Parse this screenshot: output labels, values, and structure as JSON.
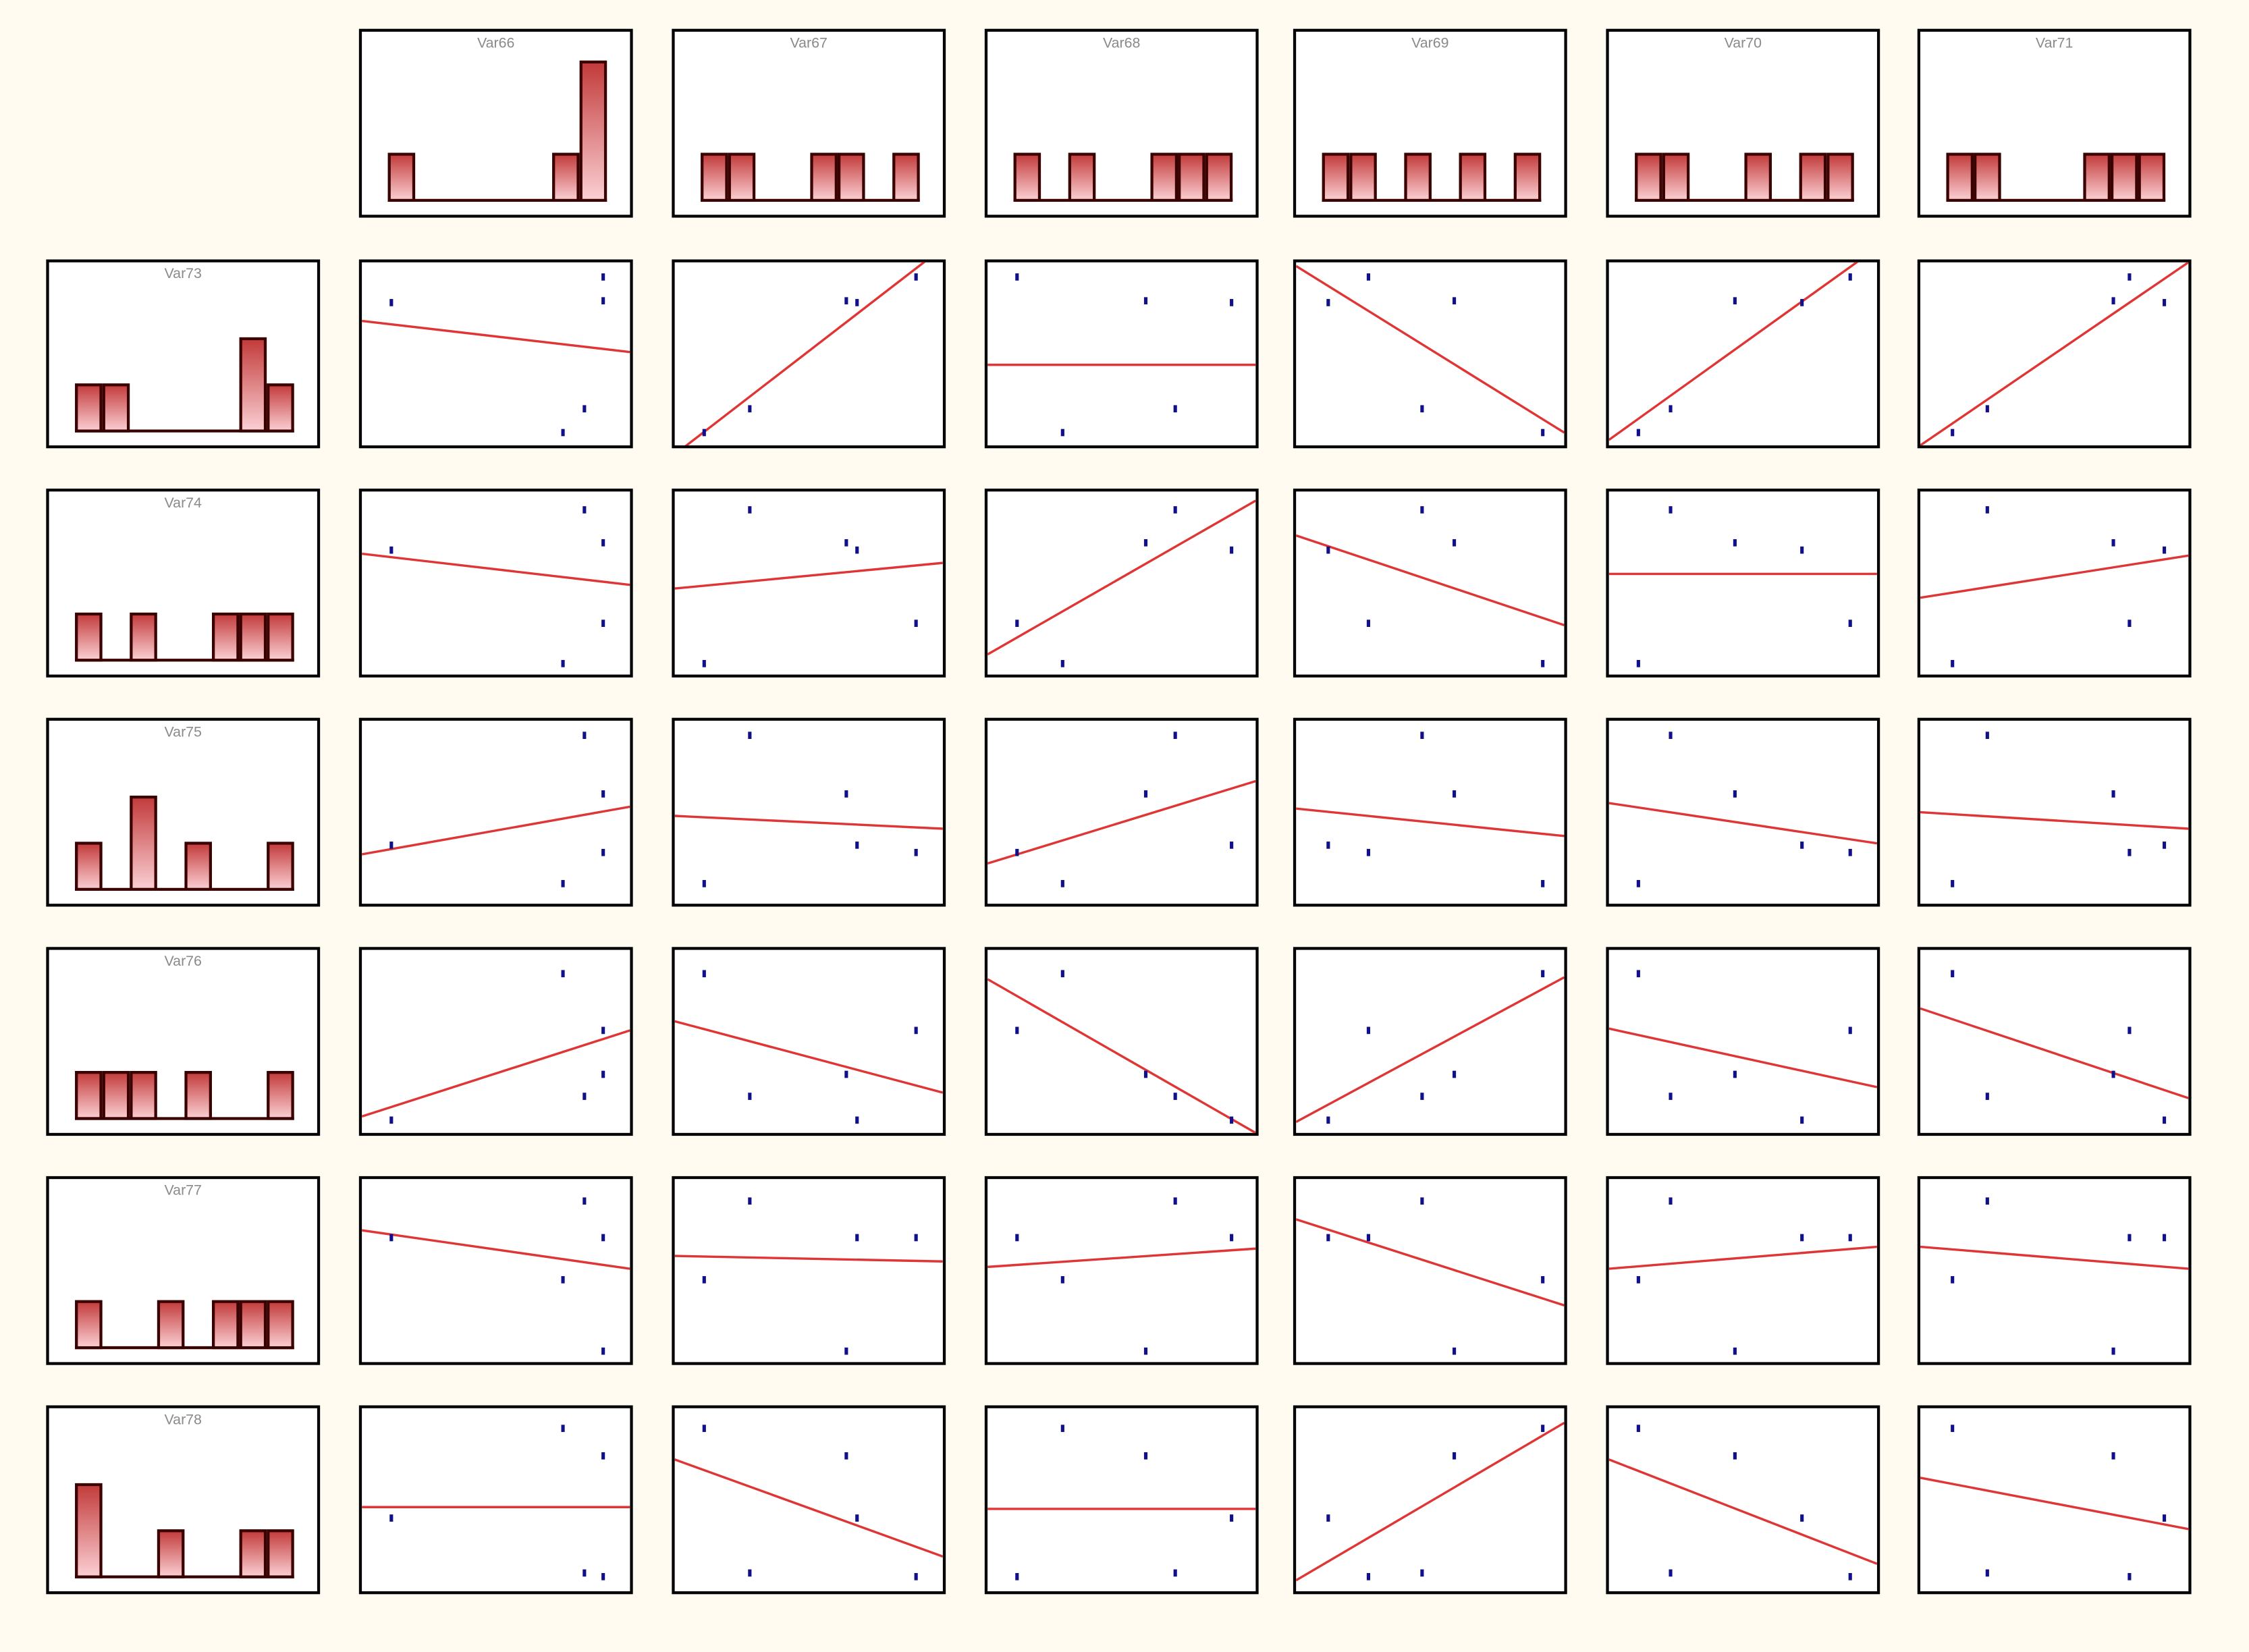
{
  "chart_data": {
    "type": "scatter-matrix",
    "columns": [
      "Var66",
      "Var67",
      "Var68",
      "Var69",
      "Var70",
      "Var71"
    ],
    "rows": [
      "Var73",
      "Var74",
      "Var75",
      "Var76",
      "Var77",
      "Var78"
    ],
    "axis_range": [
      0,
      100
    ],
    "grid": false,
    "colors": {
      "point": "#10108a",
      "fit_line": "#e03535",
      "bar_edge": "#3a0000",
      "bar_fill_top": "#c23a3a",
      "bar_fill_bottom": "#fbd0d4",
      "background": "#fffbf1"
    },
    "histograms": {
      "Var66": [
        1,
        0,
        0,
        0,
        0,
        0,
        1,
        3
      ],
      "Var67": [
        1,
        1,
        0,
        0,
        1,
        1,
        0,
        1
      ],
      "Var68": [
        1,
        0,
        1,
        0,
        0,
        1,
        1,
        1
      ],
      "Var69": [
        1,
        1,
        0,
        1,
        0,
        1,
        0,
        1
      ],
      "Var70": [
        1,
        1,
        0,
        0,
        1,
        0,
        1,
        1
      ],
      "Var71": [
        1,
        1,
        0,
        0,
        0,
        1,
        1,
        1
      ],
      "Var73": [
        1,
        1,
        0,
        0,
        0,
        0,
        2,
        1
      ],
      "Var74": [
        1,
        0,
        1,
        0,
        0,
        1,
        1,
        1
      ],
      "Var75": [
        1,
        0,
        2,
        0,
        1,
        0,
        0,
        1
      ],
      "Var76": [
        1,
        1,
        1,
        0,
        1,
        0,
        0,
        1
      ],
      "Var77": [
        1,
        0,
        0,
        1,
        0,
        1,
        1,
        1
      ],
      "Var78": [
        2,
        0,
        0,
        1,
        0,
        0,
        1,
        1
      ]
    },
    "scatter": [
      [
        {
          "points": [
            [
              11,
              78
            ],
            [
              90,
              92
            ],
            [
              90,
              79
            ],
            [
              83,
              20
            ],
            [
              75,
              7
            ]
          ],
          "fit": [
            68,
            51
          ]
        },
        {
          "points": [
            [
              11,
              7
            ],
            [
              28,
              20
            ],
            [
              64,
              79
            ],
            [
              68,
              78
            ],
            [
              90,
              92
            ]
          ],
          "fit": [
            -5,
            108
          ]
        },
        {
          "points": [
            [
              11,
              92
            ],
            [
              28,
              7
            ],
            [
              59,
              79
            ],
            [
              70,
              20
            ],
            [
              91,
              78
            ]
          ],
          "fit": [
            44,
            44
          ]
        },
        {
          "points": [
            [
              12,
              78
            ],
            [
              27,
              92
            ],
            [
              59,
              79
            ],
            [
              47,
              20
            ],
            [
              92,
              7
            ]
          ],
          "fit": [
            98,
            7
          ]
        },
        {
          "points": [
            [
              11,
              7
            ],
            [
              23,
              20
            ],
            [
              47,
              79
            ],
            [
              72,
              78
            ],
            [
              90,
              92
            ]
          ],
          "fit": [
            3,
            108
          ]
        },
        {
          "points": [
            [
              12,
              7
            ],
            [
              25,
              20
            ],
            [
              72,
              79
            ],
            [
              78,
              92
            ],
            [
              91,
              78
            ]
          ],
          "fit": [
            0,
            100
          ]
        }
      ],
      [
        {
          "points": [
            [
              11,
              68
            ],
            [
              83,
              90
            ],
            [
              90,
              72
            ],
            [
              90,
              28
            ],
            [
              75,
              6
            ]
          ],
          "fit": [
            66,
            49
          ]
        },
        {
          "points": [
            [
              11,
              6
            ],
            [
              28,
              90
            ],
            [
              64,
              72
            ],
            [
              68,
              68
            ],
            [
              90,
              28
            ]
          ],
          "fit": [
            47,
            61
          ]
        },
        {
          "points": [
            [
              11,
              28
            ],
            [
              28,
              6
            ],
            [
              59,
              72
            ],
            [
              70,
              90
            ],
            [
              91,
              68
            ]
          ],
          "fit": [
            11,
            95
          ]
        },
        {
          "points": [
            [
              12,
              68
            ],
            [
              27,
              28
            ],
            [
              59,
              72
            ],
            [
              47,
              90
            ],
            [
              92,
              6
            ]
          ],
          "fit": [
            76,
            27
          ]
        },
        {
          "points": [
            [
              11,
              6
            ],
            [
              23,
              90
            ],
            [
              47,
              72
            ],
            [
              72,
              68
            ],
            [
              90,
              28
            ]
          ],
          "fit": [
            55,
            55
          ]
        },
        {
          "points": [
            [
              12,
              6
            ],
            [
              25,
              90
            ],
            [
              72,
              72
            ],
            [
              78,
              28
            ],
            [
              91,
              68
            ]
          ],
          "fit": [
            42,
            65
          ]
        }
      ],
      [
        {
          "points": [
            [
              11,
              32
            ],
            [
              83,
              92
            ],
            [
              90,
              60
            ],
            [
              90,
              28
            ],
            [
              75,
              11
            ]
          ],
          "fit": [
            27,
            53
          ]
        },
        {
          "points": [
            [
              11,
              11
            ],
            [
              28,
              92
            ],
            [
              64,
              60
            ],
            [
              68,
              32
            ],
            [
              90,
              28
            ]
          ],
          "fit": [
            48,
            41
          ]
        },
        {
          "points": [
            [
              11,
              28
            ],
            [
              28,
              11
            ],
            [
              59,
              60
            ],
            [
              70,
              92
            ],
            [
              91,
              32
            ]
          ],
          "fit": [
            22,
            67
          ]
        },
        {
          "points": [
            [
              12,
              32
            ],
            [
              27,
              28
            ],
            [
              59,
              60
            ],
            [
              47,
              92
            ],
            [
              92,
              11
            ]
          ],
          "fit": [
            52,
            37
          ]
        },
        {
          "points": [
            [
              11,
              11
            ],
            [
              23,
              92
            ],
            [
              47,
              60
            ],
            [
              72,
              32
            ],
            [
              90,
              28
            ]
          ],
          "fit": [
            55,
            33
          ]
        },
        {
          "points": [
            [
              12,
              11
            ],
            [
              25,
              92
            ],
            [
              72,
              60
            ],
            [
              78,
              28
            ],
            [
              91,
              32
            ]
          ],
          "fit": [
            50,
            41
          ]
        }
      ],
      [
        {
          "points": [
            [
              11,
              7
            ],
            [
              75,
              87
            ],
            [
              90,
              56
            ],
            [
              90,
              32
            ],
            [
              83,
              20
            ]
          ],
          "fit": [
            9,
            56
          ]
        },
        {
          "points": [
            [
              11,
              87
            ],
            [
              28,
              20
            ],
            [
              64,
              32
            ],
            [
              68,
              7
            ],
            [
              90,
              56
            ]
          ],
          "fit": [
            61,
            22
          ]
        },
        {
          "points": [
            [
              11,
              56
            ],
            [
              28,
              87
            ],
            [
              59,
              32
            ],
            [
              70,
              20
            ],
            [
              91,
              7
            ]
          ],
          "fit": [
            84,
            0
          ]
        },
        {
          "points": [
            [
              12,
              7
            ],
            [
              27,
              56
            ],
            [
              59,
              32
            ],
            [
              47,
              20
            ],
            [
              92,
              87
            ]
          ],
          "fit": [
            6,
            85
          ]
        },
        {
          "points": [
            [
              11,
              87
            ],
            [
              23,
              20
            ],
            [
              47,
              32
            ],
            [
              72,
              7
            ],
            [
              90,
              56
            ]
          ],
          "fit": [
            57,
            25
          ]
        },
        {
          "points": [
            [
              12,
              87
            ],
            [
              25,
              20
            ],
            [
              72,
              32
            ],
            [
              78,
              56
            ],
            [
              91,
              7
            ]
          ],
          "fit": [
            68,
            19
          ]
        }
      ],
      [
        {
          "points": [
            [
              11,
              68
            ],
            [
              83,
              88
            ],
            [
              90,
              68
            ],
            [
              90,
              6
            ],
            [
              75,
              45
            ]
          ],
          "fit": [
            72,
            51
          ]
        },
        {
          "points": [
            [
              11,
              45
            ],
            [
              28,
              88
            ],
            [
              64,
              6
            ],
            [
              68,
              68
            ],
            [
              90,
              68
            ]
          ],
          "fit": [
            58,
            55
          ]
        },
        {
          "points": [
            [
              11,
              68
            ],
            [
              28,
              45
            ],
            [
              59,
              6
            ],
            [
              70,
              88
            ],
            [
              91,
              68
            ]
          ],
          "fit": [
            52,
            62
          ]
        },
        {
          "points": [
            [
              12,
              68
            ],
            [
              27,
              68
            ],
            [
              59,
              6
            ],
            [
              47,
              88
            ],
            [
              92,
              45
            ]
          ],
          "fit": [
            78,
            31
          ]
        },
        {
          "points": [
            [
              11,
              45
            ],
            [
              23,
              88
            ],
            [
              47,
              6
            ],
            [
              72,
              68
            ],
            [
              90,
              68
            ]
          ],
          "fit": [
            51,
            63
          ]
        },
        {
          "points": [
            [
              12,
              45
            ],
            [
              25,
              88
            ],
            [
              72,
              6
            ],
            [
              78,
              68
            ],
            [
              91,
              68
            ]
          ],
          "fit": [
            63,
            51
          ]
        }
      ],
      [
        {
          "points": [
            [
              11,
              40
            ],
            [
              75,
              89
            ],
            [
              90,
              74
            ],
            [
              83,
              10
            ],
            [
              90,
              8
            ]
          ],
          "fit": [
            46,
            46
          ]
        },
        {
          "points": [
            [
              11,
              89
            ],
            [
              28,
              10
            ],
            [
              64,
              74
            ],
            [
              68,
              40
            ],
            [
              90,
              8
            ]
          ],
          "fit": [
            72,
            19
          ]
        },
        {
          "points": [
            [
              11,
              8
            ],
            [
              28,
              89
            ],
            [
              59,
              74
            ],
            [
              70,
              10
            ],
            [
              91,
              40
            ]
          ],
          "fit": [
            45,
            45
          ]
        },
        {
          "points": [
            [
              12,
              40
            ],
            [
              27,
              8
            ],
            [
              59,
              74
            ],
            [
              47,
              10
            ],
            [
              92,
              89
            ]
          ],
          "fit": [
            6,
            92
          ]
        },
        {
          "points": [
            [
              11,
              89
            ],
            [
              23,
              10
            ],
            [
              47,
              74
            ],
            [
              72,
              40
            ],
            [
              90,
              8
            ]
          ],
          "fit": [
            72,
            15
          ]
        },
        {
          "points": [
            [
              12,
              89
            ],
            [
              25,
              10
            ],
            [
              72,
              74
            ],
            [
              78,
              8
            ],
            [
              91,
              40
            ]
          ],
          "fit": [
            62,
            34
          ]
        }
      ]
    ]
  }
}
